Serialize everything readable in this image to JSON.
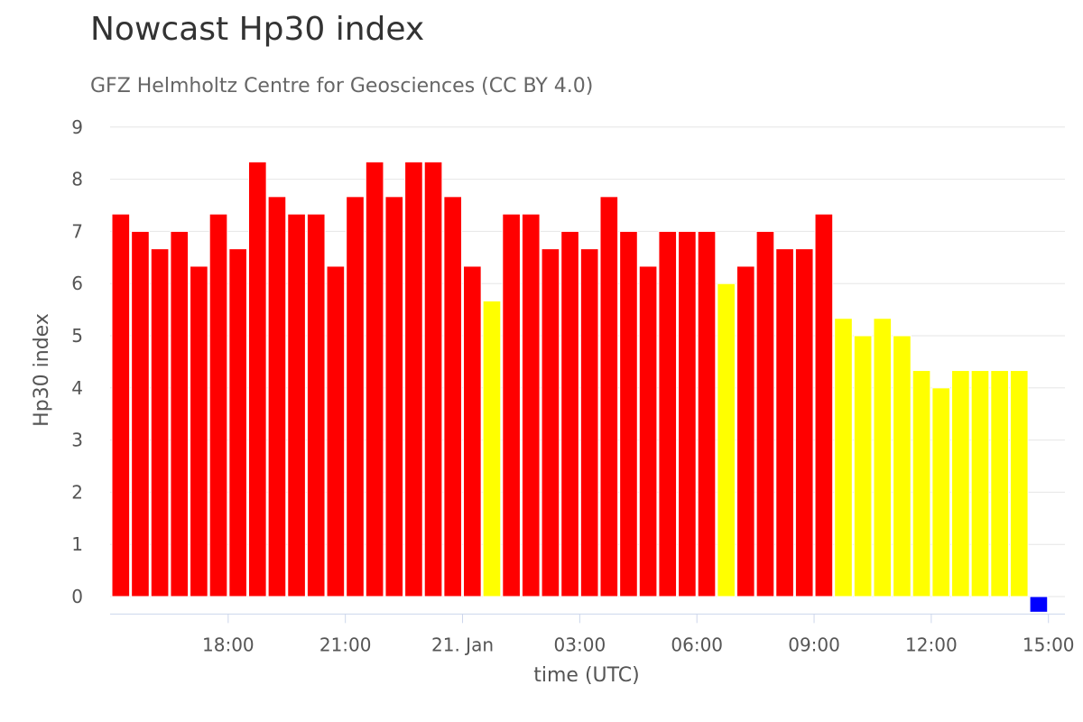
{
  "chart_data": {
    "type": "bar",
    "title": "Nowcast Hp30 index",
    "subtitle": "GFZ Helmholtz Centre for Geosciences (CC BY 4.0)",
    "xlabel": "time (UTC)",
    "ylabel": "Hp30 index",
    "ylim": [
      -0.3,
      9
    ],
    "yticks": [
      0,
      1,
      2,
      3,
      4,
      5,
      6,
      7,
      8,
      9
    ],
    "xticks": [
      {
        "label": "18:00",
        "hours": 3.0
      },
      {
        "label": "21:00",
        "hours": 6.0
      },
      {
        "label": "21. Jan",
        "hours": 9.0
      },
      {
        "label": "03:00",
        "hours": 12.0
      },
      {
        "label": "06:00",
        "hours": 15.0
      },
      {
        "label": "09:00",
        "hours": 18.0
      },
      {
        "label": "12:00",
        "hours": 21.0
      },
      {
        "label": "15:00",
        "hours": 24.0
      }
    ],
    "x_range_hours": [
      0,
      25
    ],
    "bar_start_hours": 0.25,
    "bar_interval_hours": 0.5,
    "values": [
      7.333,
      7.0,
      6.667,
      7.0,
      6.333,
      7.333,
      6.667,
      8.333,
      7.667,
      7.333,
      7.333,
      6.333,
      7.667,
      8.333,
      7.667,
      8.333,
      8.333,
      7.667,
      6.333,
      5.667,
      7.333,
      7.333,
      6.667,
      7.0,
      6.667,
      7.667,
      7.0,
      6.333,
      7.0,
      7.0,
      7.0,
      6.0,
      6.333,
      7.0,
      6.667,
      6.667,
      7.333,
      5.333,
      5.0,
      5.333,
      5.0,
      4.333,
      4.0,
      4.333,
      4.333,
      4.333,
      4.333,
      -0.3
    ],
    "colors": [
      "#ff0000",
      "#ff0000",
      "#ff0000",
      "#ff0000",
      "#ff0000",
      "#ff0000",
      "#ff0000",
      "#ff0000",
      "#ff0000",
      "#ff0000",
      "#ff0000",
      "#ff0000",
      "#ff0000",
      "#ff0000",
      "#ff0000",
      "#ff0000",
      "#ff0000",
      "#ff0000",
      "#ff0000",
      "#ffff00",
      "#ff0000",
      "#ff0000",
      "#ff0000",
      "#ff0000",
      "#ff0000",
      "#ff0000",
      "#ff0000",
      "#ff0000",
      "#ff0000",
      "#ff0000",
      "#ff0000",
      "#ffff00",
      "#ff0000",
      "#ff0000",
      "#ff0000",
      "#ff0000",
      "#ff0000",
      "#ffff00",
      "#ffff00",
      "#ffff00",
      "#ffff00",
      "#ffff00",
      "#ffff00",
      "#ffff00",
      "#ffff00",
      "#ffff00",
      "#ffff00",
      "#0000ff"
    ]
  }
}
